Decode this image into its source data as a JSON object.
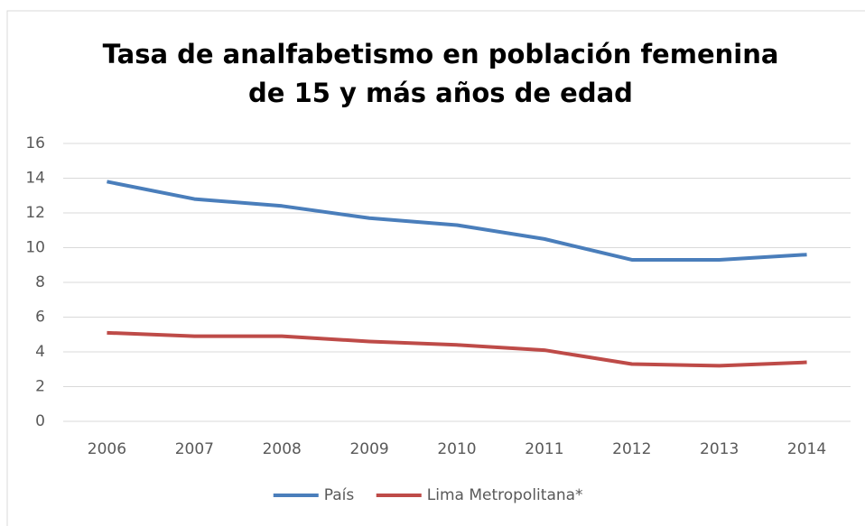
{
  "chart_data": {
    "type": "line",
    "title": [
      "Tasa de analfabetismo en población femenina",
      "de 15 y más años de edad"
    ],
    "categories": [
      "2006",
      "2007",
      "2008",
      "2009",
      "2010",
      "2011",
      "2012",
      "2013",
      "2014"
    ],
    "series": [
      {
        "name": "País",
        "color": "#4a7ebb",
        "values": [
          13.8,
          12.8,
          12.4,
          11.7,
          11.3,
          10.5,
          9.3,
          9.3,
          9.6
        ]
      },
      {
        "name": "Lima Metropolitana*",
        "color": "#be4b48",
        "values": [
          5.1,
          4.9,
          4.9,
          4.6,
          4.4,
          4.1,
          3.3,
          3.2,
          3.4
        ]
      }
    ],
    "ylim": [
      0,
      16
    ],
    "yticks": [
      0,
      2,
      4,
      6,
      8,
      10,
      12,
      14,
      16
    ],
    "grid": true,
    "legend": "bottom"
  }
}
